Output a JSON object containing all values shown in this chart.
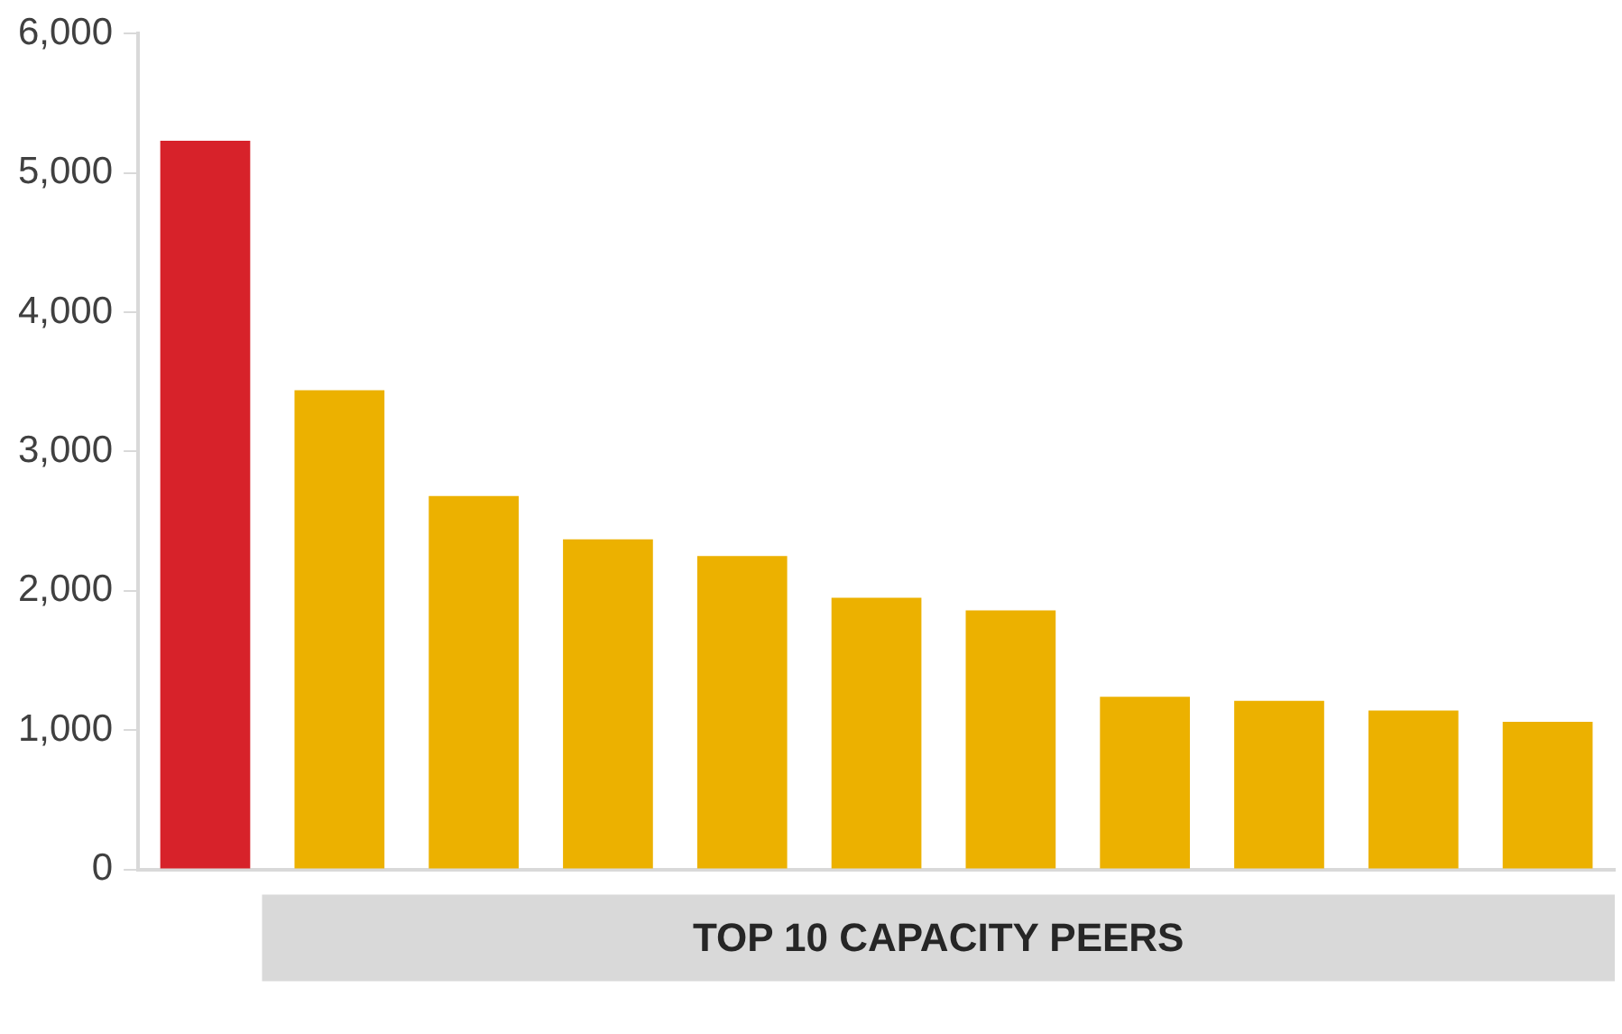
{
  "chart_data": {
    "type": "bar",
    "xlabel": "TOP 10 CAPACITY PEERS",
    "categories": [
      null,
      null,
      null,
      null,
      null,
      null,
      null,
      null,
      null,
      null,
      null
    ],
    "values": [
      5230,
      3440,
      2680,
      2370,
      2250,
      1950,
      1860,
      1240,
      1210,
      1140,
      1060
    ],
    "colors": [
      "#d7222a",
      "#ecb100",
      "#ecb100",
      "#ecb100",
      "#ecb100",
      "#ecb100",
      "#ecb100",
      "#ecb100",
      "#ecb100",
      "#ecb100",
      "#ecb100"
    ],
    "ylim": [
      0,
      6000
    ],
    "yticks": [
      0,
      {
        "value": 1000,
        "label": "1,000"
      },
      {
        "value": 2000,
        "label": "2,000"
      },
      {
        "value": 3000,
        "label": "3,000"
      },
      {
        "value": 4000,
        "label": "4,000"
      },
      {
        "value": 5000,
        "label": "5,000"
      },
      {
        "value": 6000,
        "label": "6,000"
      }
    ],
    "grid": false,
    "legend": false
  }
}
